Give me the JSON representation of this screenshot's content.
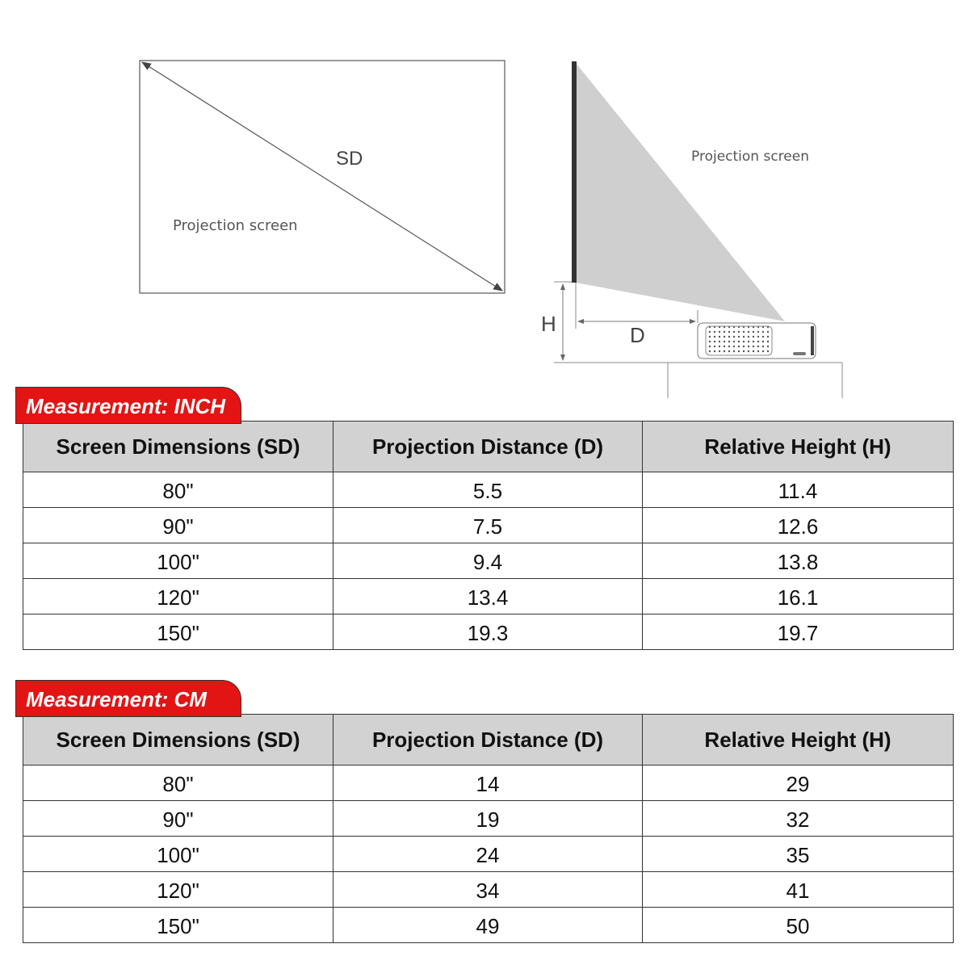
{
  "diagram": {
    "screen_label": "Projection screen",
    "diagonal_label": "SD",
    "side_screen_label": "Projection screen",
    "height_label": "H",
    "distance_label": "D"
  },
  "colors": {
    "badge": "#e31414",
    "header_bg": "#d2d2d2",
    "beam": "#cfcfcf"
  },
  "tables": [
    {
      "badge": "Measurement: INCH",
      "headers": [
        "Screen Dimensions (SD)",
        "Projection Distance (D)",
        "Relative Height (H)"
      ],
      "rows": [
        [
          "80\"",
          "5.5",
          "11.4"
        ],
        [
          "90\"",
          "7.5",
          "12.6"
        ],
        [
          "100\"",
          "9.4",
          "13.8"
        ],
        [
          "120\"",
          "13.4",
          "16.1"
        ],
        [
          "150\"",
          "19.3",
          "19.7"
        ]
      ]
    },
    {
      "badge": "Measurement: CM",
      "headers": [
        "Screen Dimensions (SD)",
        "Projection Distance (D)",
        "Relative Height (H)"
      ],
      "rows": [
        [
          "80\"",
          "14",
          "29"
        ],
        [
          "90\"",
          "19",
          "32"
        ],
        [
          "100\"",
          "24",
          "35"
        ],
        [
          "120\"",
          "34",
          "41"
        ],
        [
          "150\"",
          "49",
          "50"
        ]
      ]
    }
  ]
}
